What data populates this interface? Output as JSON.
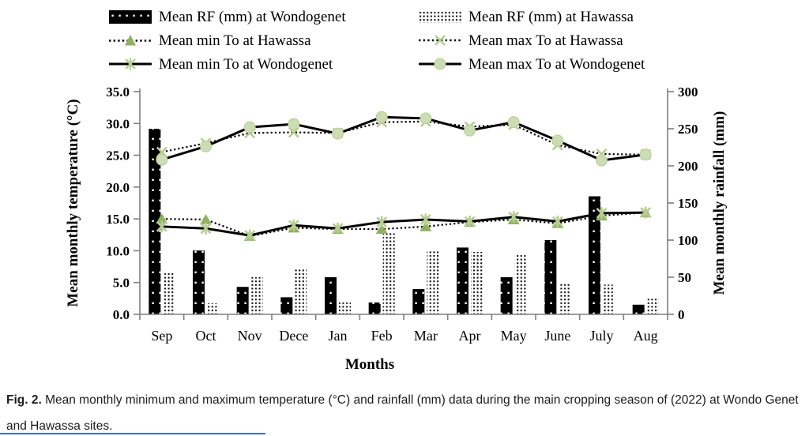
{
  "legend": {
    "items": [
      {
        "id": "rf-wondogenet",
        "label": "Mean RF (mm) at Wondogenet"
      },
      {
        "id": "rf-hawassa",
        "label": "Mean RF (mm) at Hawassa"
      },
      {
        "id": "min-hawassa",
        "label": "Mean min To at Hawassa"
      },
      {
        "id": "max-hawassa",
        "label": "Mean max To at Hawassa"
      },
      {
        "id": "min-wondogenet",
        "label": "Mean min To at Wondogenet"
      },
      {
        "id": "max-wondogenet",
        "label": "Mean max To at Wondogenet"
      }
    ]
  },
  "chart_data": {
    "type": "combo-bar-line",
    "categories": [
      "Sep",
      "Oct",
      "Nov",
      "Dece",
      "Jan",
      "Feb",
      "Mar",
      "Apr",
      "May",
      "June",
      "July",
      "Aug"
    ],
    "bar_series": [
      {
        "name": "Mean RF (mm) at Wondogenet",
        "axis": "right",
        "style": "black-dots",
        "values": [
          250,
          86,
          37,
          23,
          50,
          16,
          34,
          90,
          50,
          100,
          159,
          13
        ]
      },
      {
        "name": "Mean RF (mm) at Hawassa",
        "axis": "right",
        "style": "dot-grid",
        "values": [
          57,
          15,
          50,
          61,
          16,
          111,
          85,
          84,
          82,
          42,
          40,
          21
        ]
      }
    ],
    "line_series": [
      {
        "name": "Mean min To at Hawassa",
        "axis": "left",
        "line": "dotted",
        "marker": "triangle",
        "values": [
          15.0,
          14.9,
          12.3,
          13.6,
          13.4,
          13.4,
          13.8,
          14.5,
          14.9,
          14.3,
          15.5,
          16.0
        ]
      },
      {
        "name": "Mean max To at Hawassa",
        "axis": "left",
        "line": "dotted",
        "marker": "x",
        "values": [
          25.5,
          26.9,
          28.5,
          28.6,
          28.5,
          30.2,
          30.3,
          29.5,
          29.8,
          26.6,
          25.2,
          25.1
        ]
      },
      {
        "name": "Mean min To at Wondogenet",
        "axis": "left",
        "line": "solid",
        "marker": "asterisk",
        "values": [
          13.8,
          13.5,
          12.4,
          14.0,
          13.5,
          14.5,
          14.9,
          14.6,
          15.3,
          14.6,
          15.9,
          16.0
        ]
      },
      {
        "name": "Mean max To at Wondogenet",
        "axis": "left",
        "line": "solid",
        "marker": "circle",
        "values": [
          24.3,
          26.4,
          29.4,
          29.9,
          28.4,
          31.0,
          30.8,
          28.9,
          30.2,
          27.3,
          24.2,
          25.1
        ]
      }
    ],
    "left_axis": {
      "title": "Mean monthly temperature (°C)",
      "min": 0,
      "max": 35,
      "step": 5,
      "decimals": 1
    },
    "right_axis": {
      "title": "Mean monthly rainfall (mm)",
      "min": 0,
      "max": 300,
      "step": 50,
      "decimals": 0
    },
    "x_axis": {
      "title": "Months"
    },
    "colors": {
      "line": "#000000",
      "axis": "#7f7f7f",
      "marker_fill": "#ccdcb4",
      "marker_stroke": "#b9cc93",
      "triangle_fill": "#8fb161"
    }
  },
  "caption": {
    "prefix": "Fig. 2.",
    "text": " Mean monthly minimum and maximum temperature (°C) and rainfall (mm) data during the main cropping season of (2022) at Wondo Genet and Hawassa sites."
  }
}
